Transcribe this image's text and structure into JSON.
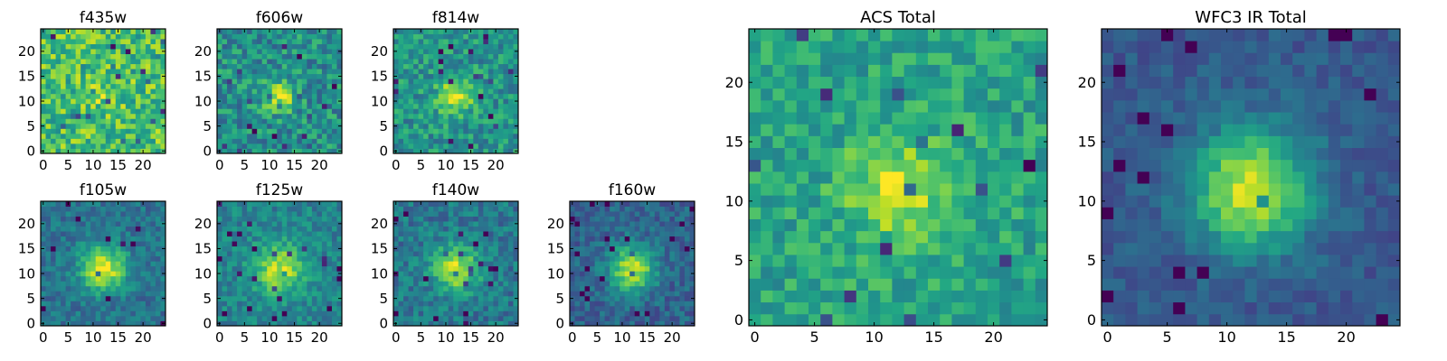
{
  "figure": {
    "colormap": "viridis",
    "colors": {
      "frame": "#000000",
      "background": "#ffffff"
    }
  },
  "chart_data": [
    {
      "type": "heatmap",
      "title": "f435w",
      "grid_size": 25,
      "xlim": [
        0,
        24
      ],
      "ylim": [
        0,
        24
      ],
      "x_ticks": [
        0,
        5,
        10,
        15,
        20
      ],
      "y_ticks": [
        0,
        5,
        10,
        15,
        20
      ],
      "source_center": [
        12,
        11
      ],
      "source_peak": 0.1,
      "source_sigma": 3.0,
      "noise": 0.22,
      "base": 0.7,
      "seed": 11
    },
    {
      "type": "heatmap",
      "title": "f606w",
      "grid_size": 25,
      "xlim": [
        0,
        24
      ],
      "ylim": [
        0,
        24
      ],
      "x_ticks": [
        0,
        5,
        10,
        15,
        20
      ],
      "y_ticks": [
        0,
        5,
        10,
        15,
        20
      ],
      "source_center": [
        12,
        11
      ],
      "source_peak": 0.4,
      "source_sigma": 2.2,
      "noise": 0.2,
      "base": 0.5,
      "seed": 23
    },
    {
      "type": "heatmap",
      "title": "f814w",
      "grid_size": 25,
      "xlim": [
        0,
        24
      ],
      "ylim": [
        0,
        24
      ],
      "x_ticks": [
        0,
        5,
        10,
        15,
        20
      ],
      "y_ticks": [
        0,
        5,
        10,
        15,
        20
      ],
      "source_center": [
        12,
        11
      ],
      "source_peak": 0.4,
      "source_sigma": 2.5,
      "noise": 0.18,
      "base": 0.52,
      "seed": 37
    },
    {
      "type": "heatmap",
      "title": "f105w",
      "grid_size": 25,
      "xlim": [
        0,
        24
      ],
      "ylim": [
        0,
        24
      ],
      "x_ticks": [
        0,
        5,
        10,
        15,
        20
      ],
      "y_ticks": [
        0,
        5,
        10,
        15,
        20
      ],
      "source_center": [
        12,
        11
      ],
      "source_peak": 0.58,
      "source_sigma": 3.2,
      "noise": 0.12,
      "base": 0.38,
      "seed": 41
    },
    {
      "type": "heatmap",
      "title": "f125w",
      "grid_size": 25,
      "xlim": [
        0,
        24
      ],
      "ylim": [
        0,
        24
      ],
      "x_ticks": [
        0,
        5,
        10,
        15,
        20
      ],
      "y_ticks": [
        0,
        5,
        10,
        15,
        20
      ],
      "source_center": [
        12,
        11
      ],
      "source_peak": 0.45,
      "source_sigma": 3.5,
      "noise": 0.13,
      "base": 0.45,
      "seed": 53
    },
    {
      "type": "heatmap",
      "title": "f140w",
      "grid_size": 25,
      "xlim": [
        0,
        24
      ],
      "ylim": [
        0,
        24
      ],
      "x_ticks": [
        0,
        5,
        10,
        15,
        20
      ],
      "y_ticks": [
        0,
        5,
        10,
        15,
        20
      ],
      "source_center": [
        12,
        11
      ],
      "source_peak": 0.5,
      "source_sigma": 3.3,
      "noise": 0.14,
      "base": 0.4,
      "seed": 67
    },
    {
      "type": "heatmap",
      "title": "f160w",
      "grid_size": 25,
      "xlim": [
        0,
        24
      ],
      "ylim": [
        0,
        24
      ],
      "x_ticks": [
        0,
        5,
        10,
        15,
        20
      ],
      "y_ticks": [
        0,
        5,
        10,
        15,
        20
      ],
      "source_center": [
        12,
        11
      ],
      "source_peak": 0.6,
      "source_sigma": 3.2,
      "noise": 0.12,
      "base": 0.32,
      "seed": 79
    },
    {
      "type": "heatmap",
      "title": "ACS Total",
      "grid_size": 25,
      "xlim": [
        0,
        24
      ],
      "ylim": [
        0,
        24
      ],
      "x_ticks": [
        0,
        5,
        10,
        15,
        20
      ],
      "y_ticks": [
        0,
        5,
        10,
        15,
        20
      ],
      "source_center": [
        12,
        11
      ],
      "source_peak": 0.35,
      "source_sigma": 3.0,
      "noise": 0.15,
      "base": 0.58,
      "seed": 97
    },
    {
      "type": "heatmap",
      "title": "WFC3 IR Total",
      "grid_size": 25,
      "xlim": [
        0,
        24
      ],
      "ylim": [
        0,
        24
      ],
      "x_ticks": [
        0,
        5,
        10,
        15,
        20
      ],
      "y_ticks": [
        0,
        5,
        10,
        15,
        20
      ],
      "source_center": [
        12,
        11
      ],
      "source_peak": 0.65,
      "source_sigma": 3.5,
      "noise": 0.08,
      "base": 0.28,
      "seed": 109
    }
  ]
}
